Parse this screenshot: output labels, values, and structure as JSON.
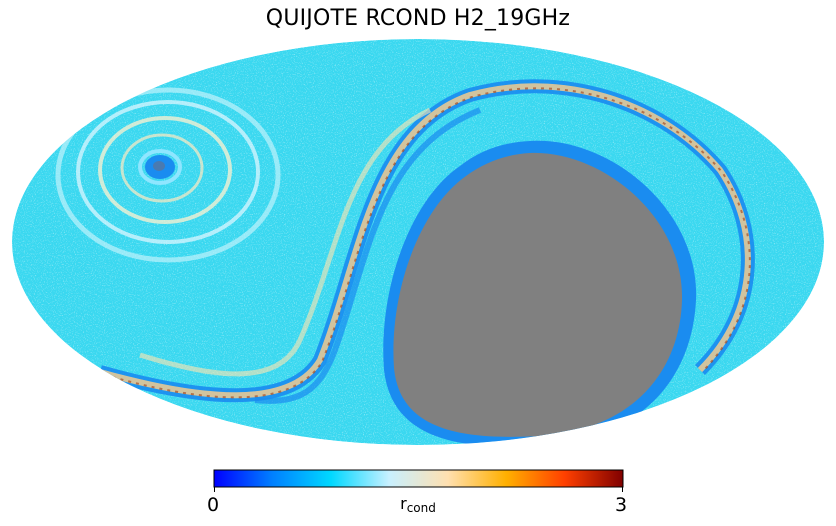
{
  "chart_data": {
    "type": "heatmap",
    "projection": "mollweide",
    "title": "QUIJOTE RCOND H2_19GHz",
    "colorbar": {
      "label_main": "r",
      "label_sub": "cond",
      "min": 0,
      "max": 3,
      "tick_labels": [
        "0",
        "3"
      ],
      "colormap": [
        "#0000ff",
        "#0080ff",
        "#00d8ff",
        "#c8f0ff",
        "#ffe0b0",
        "#ffb000",
        "#ff4000",
        "#800000"
      ]
    },
    "masked_color": "#808080",
    "background_value_color": "#33d6f0",
    "grid": false
  }
}
